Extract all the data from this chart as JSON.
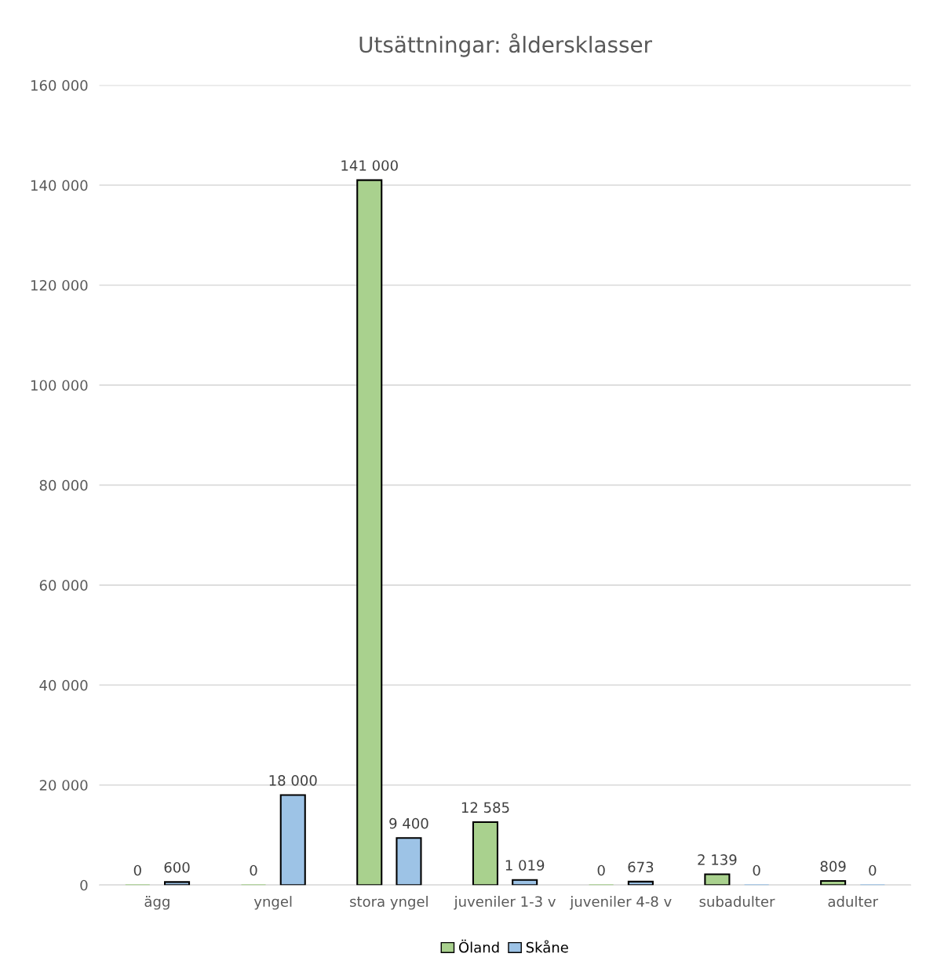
{
  "chart_data": {
    "type": "bar",
    "title": "Utsättningar: åldersklasser",
    "categories": [
      "ägg",
      "yngel",
      "stora yngel",
      "juveniler 1-3 v",
      "juveniler 4-8 v",
      "subadulter",
      "adulter"
    ],
    "series": [
      {
        "name": "Öland",
        "color": "#a9d18e",
        "values": [
          0,
          0,
          141000,
          12585,
          0,
          2139,
          809
        ],
        "value_labels": [
          "0",
          "0",
          "141 000",
          "12 585",
          "0",
          "2 139",
          "809"
        ]
      },
      {
        "name": "Skåne",
        "color": "#9dc3e6",
        "values": [
          600,
          18000,
          9400,
          1019,
          673,
          0,
          0
        ],
        "value_labels": [
          "600",
          "18 000",
          "9 400",
          "1 019",
          "673",
          "0",
          "0"
        ]
      }
    ],
    "ylim": [
      0,
      160000
    ],
    "yticks": [
      0,
      {
        "value": 20000,
        "label": "20 000"
      },
      {
        "value": 40000,
        "label": "40 000"
      },
      {
        "value": 60000,
        "label": "60 000"
      },
      {
        "value": 80000,
        "label": "80 000"
      },
      {
        "value": 100000,
        "label": "100 000"
      },
      {
        "value": 120000,
        "label": "120 000"
      },
      {
        "value": 140000,
        "label": "140 000"
      },
      {
        "value": 160000,
        "label": "160 000"
      }
    ],
    "grid": "y",
    "legend": "bottom"
  }
}
